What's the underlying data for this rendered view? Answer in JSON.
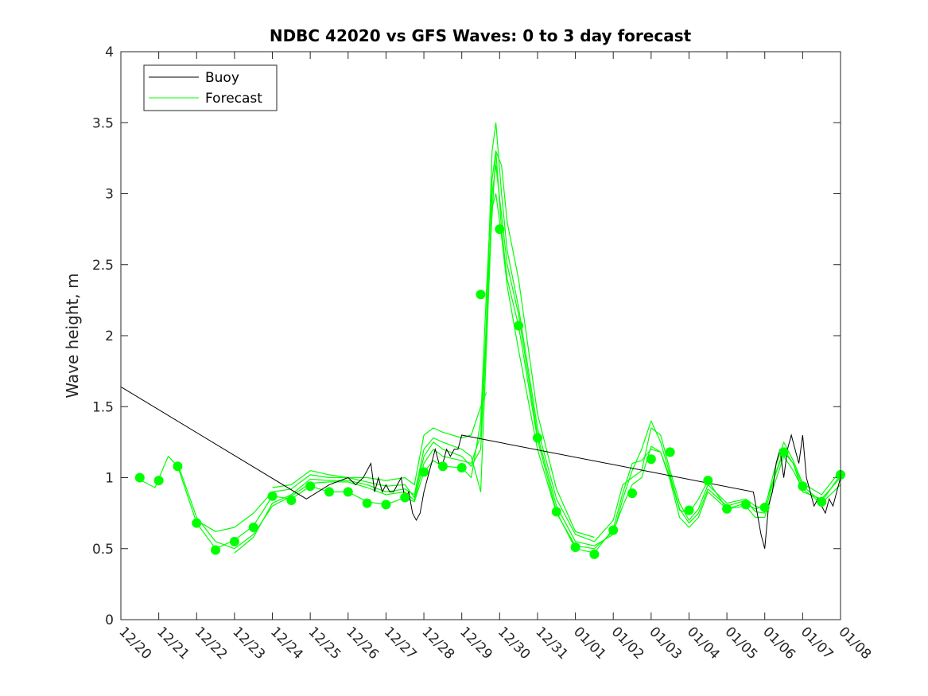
{
  "chart_data": {
    "type": "line",
    "title": "NDBC 42020 vs GFS Waves: 0 to 3 day forecast",
    "xlabel": "",
    "ylabel": "Wave height, m",
    "xlim": [
      0,
      19
    ],
    "ylim": [
      0,
      4
    ],
    "yticks": [
      0,
      0.5,
      1,
      1.5,
      2,
      2.5,
      3,
      3.5,
      4
    ],
    "ytick_labels": [
      "0",
      "0.5",
      "1",
      "1.5",
      "2",
      "2.5",
      "3",
      "3.5",
      "4"
    ],
    "categories": [
      "12/20",
      "12/21",
      "12/22",
      "12/23",
      "12/24",
      "12/25",
      "12/26",
      "12/27",
      "12/28",
      "12/29",
      "12/30",
      "12/31",
      "01/01",
      "01/02",
      "01/03",
      "01/04",
      "01/05",
      "01/06",
      "01/07",
      "01/08"
    ],
    "legend": {
      "position": "top-left",
      "entries": [
        "Buoy",
        "Forecast"
      ]
    },
    "colors": {
      "buoy": "#000000",
      "forecast": "#00ff00",
      "axes": "#262626"
    },
    "series": [
      {
        "name": "Buoy",
        "color": "#000000",
        "x": [
          0.0,
          4.9,
          5.5,
          6.0,
          6.2,
          6.4,
          6.6,
          6.7,
          6.8,
          6.9,
          7.0,
          7.1,
          7.2,
          7.3,
          7.4,
          7.5,
          7.6,
          7.7,
          7.8,
          7.9,
          8.0,
          8.1,
          8.2,
          8.3,
          8.4,
          8.5,
          8.6,
          8.7,
          8.8,
          8.9,
          9.0,
          16.7,
          16.8,
          16.9,
          17.0,
          17.1,
          17.2,
          17.3,
          17.4,
          17.5,
          17.6,
          17.7,
          17.8,
          17.9,
          18.0,
          18.1,
          18.2,
          18.3,
          18.4,
          18.5,
          18.6,
          18.7,
          18.8,
          18.9,
          19.0
        ],
        "y": [
          1.64,
          0.85,
          0.95,
          1.0,
          0.95,
          1.0,
          1.1,
          0.9,
          1.0,
          0.9,
          0.95,
          0.9,
          0.9,
          0.95,
          1.0,
          0.85,
          0.9,
          0.75,
          0.7,
          0.75,
          0.9,
          1.0,
          1.1,
          1.2,
          1.1,
          1.1,
          1.2,
          1.15,
          1.2,
          1.2,
          1.3,
          0.9,
          0.75,
          0.6,
          0.5,
          0.8,
          0.9,
          1.1,
          1.2,
          1.0,
          1.2,
          1.3,
          1.2,
          1.1,
          1.3,
          1.0,
          0.9,
          0.8,
          0.85,
          0.8,
          0.75,
          0.85,
          0.8,
          0.9,
          1.0
        ]
      },
      {
        "name": "Forecast",
        "color": "#00ff00",
        "runs": [
          {
            "x": [
              0.4,
              0.9,
              1.25,
              1.5,
              1.75,
              2.0,
              2.5,
              3.0,
              3.5,
              4.0,
              4.5,
              5.0,
              5.5,
              6.0,
              6.5,
              7.0,
              7.5,
              7.75,
              8.0,
              8.25,
              8.5,
              9.0,
              9.25,
              9.5,
              9.65,
              9.8,
              9.9,
              10.05,
              10.2,
              10.5,
              11.0,
              11.5,
              12.0,
              12.5,
              13.0,
              13.25,
              13.5,
              13.75,
              14.0,
              14.25,
              14.5,
              14.75,
              15.0,
              15.25,
              15.5,
              16.0,
              16.5,
              16.75,
              17.0,
              17.25,
              17.5,
              17.75,
              18.0,
              18.5,
              19.0
            ],
            "y": [
              1.0,
              0.93,
              1.15,
              1.08,
              0.88,
              0.68,
              0.5,
              0.56,
              0.66,
              0.87,
              0.85,
              0.94,
              0.9,
              0.9,
              0.83,
              0.81,
              0.86,
              0.83,
              1.04,
              1.12,
              1.08,
              1.07,
              1.0,
              1.4,
              2.3,
              3.1,
              3.3,
              2.75,
              2.4,
              2.07,
              1.27,
              0.76,
              0.5,
              0.47,
              0.64,
              0.89,
              1.1,
              1.12,
              1.2,
              1.18,
              1.0,
              0.77,
              0.75,
              0.85,
              0.98,
              0.78,
              0.82,
              0.78,
              0.8,
              1.0,
              1.18,
              1.1,
              0.94,
              0.83,
              1.02
            ]
          },
          {
            "x": [
              1.5,
              2.0,
              2.5,
              3.0,
              3.5,
              4.0,
              4.5,
              5.0,
              5.5,
              6.0,
              6.5,
              7.0,
              7.5,
              7.75,
              8.0,
              8.25,
              8.5,
              9.0,
              9.25,
              9.5,
              9.65,
              9.8,
              9.9,
              10.05,
              10.2,
              10.5,
              11.0,
              11.5,
              12.0,
              12.5,
              13.0,
              13.25,
              13.5,
              13.75,
              14.0,
              14.25,
              14.5,
              14.75,
              15.0,
              15.25,
              15.5,
              16.0,
              16.5,
              16.75,
              17.0,
              17.25,
              17.5,
              17.75,
              18.0,
              18.5,
              19.0
            ],
            "y": [
              1.1,
              0.72,
              0.55,
              0.5,
              0.6,
              0.8,
              0.87,
              0.96,
              0.97,
              0.97,
              0.93,
              0.88,
              0.9,
              0.84,
              1.1,
              1.2,
              1.15,
              1.12,
              1.1,
              1.3,
              2.1,
              3.3,
              3.5,
              3.0,
              2.6,
              2.2,
              1.35,
              0.85,
              0.6,
              0.55,
              0.7,
              0.95,
              1.0,
              1.05,
              1.35,
              1.3,
              1.05,
              0.82,
              0.7,
              0.78,
              0.95,
              0.82,
              0.85,
              0.8,
              0.78,
              1.05,
              1.25,
              1.12,
              0.96,
              0.88,
              1.05
            ]
          },
          {
            "x": [
              2.0,
              2.5,
              3.0,
              3.5,
              4.0,
              4.5,
              5.0,
              5.5,
              6.0,
              6.5,
              7.0,
              7.5,
              7.75,
              8.0,
              8.25,
              8.5,
              9.0,
              9.25,
              9.5,
              9.65,
              9.8,
              9.9,
              10.05,
              10.2,
              10.5,
              11.0,
              11.5,
              12.0,
              12.5,
              13.0,
              13.25,
              13.5,
              13.75,
              14.0,
              14.25,
              14.5,
              14.75,
              15.0,
              15.25,
              15.5,
              16.0,
              16.5,
              16.75,
              17.0,
              17.25,
              17.5,
              17.75,
              18.0,
              18.5,
              19.0
            ],
            "y": [
              0.7,
              0.62,
              0.65,
              0.75,
              0.9,
              0.92,
              1.02,
              1.0,
              1.0,
              0.97,
              0.94,
              0.95,
              0.86,
              1.15,
              1.25,
              1.2,
              1.15,
              1.08,
              1.2,
              2.0,
              3.0,
              3.2,
              2.85,
              2.5,
              2.15,
              1.3,
              0.8,
              0.55,
              0.52,
              0.6,
              0.85,
              1.05,
              1.2,
              1.4,
              1.25,
              1.02,
              0.78,
              0.68,
              0.75,
              0.92,
              0.8,
              0.84,
              0.76,
              0.75,
              1.0,
              1.2,
              1.1,
              0.9,
              0.85,
              1.0
            ]
          },
          {
            "x": [
              3.0,
              3.5,
              4.0,
              4.5,
              5.0,
              5.5,
              6.0,
              6.5,
              7.0,
              7.5,
              7.75,
              8.0,
              8.25,
              8.5,
              9.0,
              9.25,
              9.5,
              9.65,
              9.8,
              9.9,
              10.05,
              10.2,
              10.5,
              11.0,
              11.5,
              12.0,
              12.5,
              13.0,
              13.25,
              13.5,
              13.75,
              14.0,
              14.25,
              14.5,
              14.75,
              15.0,
              15.25,
              15.5,
              16.0,
              16.5,
              16.75,
              17.0,
              17.25,
              17.5,
              17.75,
              18.0,
              18.5,
              19.0
            ],
            "y": [
              0.47,
              0.58,
              0.82,
              0.88,
              0.99,
              0.98,
              0.98,
              0.95,
              0.9,
              0.92,
              0.88,
              1.2,
              1.28,
              1.25,
              1.2,
              1.15,
              0.9,
              1.9,
              2.9,
              3.0,
              2.7,
              2.35,
              1.9,
              1.2,
              0.75,
              0.52,
              0.5,
              0.62,
              0.8,
              0.95,
              1.0,
              1.22,
              1.18,
              0.98,
              0.72,
              0.65,
              0.72,
              0.9,
              0.78,
              0.8,
              0.72,
              0.72,
              0.95,
              1.15,
              1.05,
              0.92,
              0.82,
              0.95
            ]
          },
          {
            "x": [
              4.0,
              4.5,
              5.0,
              5.5,
              6.0,
              6.5,
              7.0,
              7.5,
              7.75,
              8.0,
              8.25,
              8.5,
              9.0,
              9.25,
              9.5,
              9.65
            ],
            "y": [
              0.93,
              0.95,
              1.05,
              1.02,
              1.0,
              1.0,
              0.98,
              1.0,
              0.95,
              1.3,
              1.35,
              1.32,
              1.28,
              1.3,
              1.5,
              1.6
            ]
          },
          {
            "x": [
              9.7,
              9.9,
              10.05,
              10.2,
              10.5,
              11.0,
              11.5,
              12.0,
              12.5
            ],
            "y": [
              2.4,
              3.3,
              3.2,
              2.8,
              2.4,
              1.45,
              0.92,
              0.62,
              0.58
            ]
          }
        ],
        "markers": {
          "x": [
            0.5,
            1.0,
            1.5,
            2.0,
            2.5,
            3.0,
            3.5,
            4.0,
            4.5,
            5.0,
            5.5,
            6.0,
            6.5,
            7.0,
            7.5,
            8.0,
            8.5,
            9.0,
            9.5,
            10.0,
            10.5,
            11.0,
            11.5,
            12.0,
            12.5,
            13.0,
            13.5,
            14.0,
            14.5,
            15.0,
            15.5,
            16.0,
            16.5,
            17.0,
            17.5,
            18.0,
            18.5,
            19.0
          ],
          "y": [
            1.0,
            0.98,
            1.08,
            0.68,
            0.49,
            0.55,
            0.65,
            0.87,
            0.84,
            0.94,
            0.9,
            0.9,
            0.82,
            0.81,
            0.86,
            1.04,
            1.08,
            1.07,
            2.29,
            2.75,
            2.07,
            1.28,
            0.76,
            0.51,
            0.46,
            0.63,
            0.89,
            1.13,
            1.18,
            0.77,
            0.98,
            0.78,
            0.81,
            0.79,
            1.18,
            0.94,
            0.83,
            1.02
          ]
        }
      }
    ]
  }
}
